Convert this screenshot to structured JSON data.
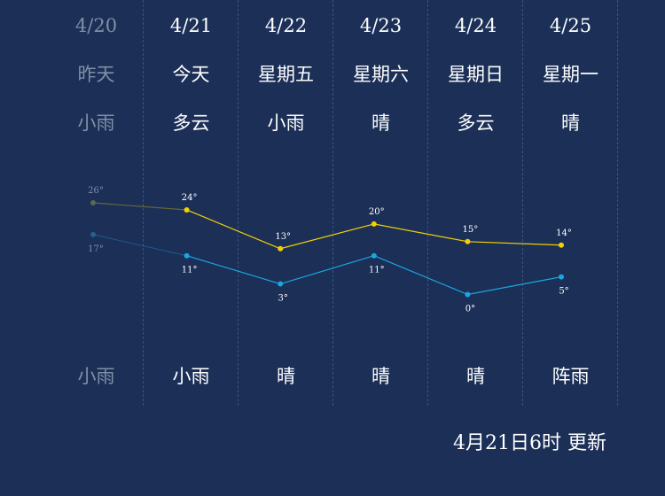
{
  "days": [
    {
      "date": "4/20",
      "weekday": "昨天",
      "day_weather": "小雨",
      "night_weather": "小雨",
      "high": 26,
      "low": 17,
      "high_label": "26°",
      "low_label": "17°",
      "past": true
    },
    {
      "date": "4/21",
      "weekday": "今天",
      "day_weather": "多云",
      "night_weather": "小雨",
      "high": 24,
      "low": 11,
      "high_label": "24°",
      "low_label": "11°",
      "past": false
    },
    {
      "date": "4/22",
      "weekday": "星期五",
      "day_weather": "小雨",
      "night_weather": "晴",
      "high": 13,
      "low": 3,
      "high_label": "13°",
      "low_label": "3°",
      "past": false
    },
    {
      "date": "4/23",
      "weekday": "星期六",
      "day_weather": "晴",
      "night_weather": "晴",
      "high": 20,
      "low": 11,
      "high_label": "20°",
      "low_label": "11°",
      "past": false
    },
    {
      "date": "4/24",
      "weekday": "星期日",
      "day_weather": "多云",
      "night_weather": "晴",
      "high": 15,
      "low": 0,
      "high_label": "15°",
      "low_label": "0°",
      "past": false
    },
    {
      "date": "4/25",
      "weekday": "星期一",
      "day_weather": "晴",
      "night_weather": "阵雨",
      "high": 14,
      "low": 5,
      "high_label": "14°",
      "low_label": "5°",
      "past": false
    }
  ],
  "update_time": "4月21日6时 更新",
  "colors": {
    "background": "#1b2f57",
    "high_line": "#f5d000",
    "low_line": "#1aa6e0",
    "past_text": "#8090a8",
    "divider": "#3b5480"
  },
  "chart_data": {
    "type": "line",
    "categories": [
      "4/20",
      "4/21",
      "4/22",
      "4/23",
      "4/24",
      "4/25"
    ],
    "series": [
      {
        "values": [
          26,
          24,
          13,
          20,
          15,
          14
        ]
      },
      {
        "values": [
          17,
          11,
          3,
          11,
          0,
          5
        ]
      }
    ],
    "grid": false
  }
}
